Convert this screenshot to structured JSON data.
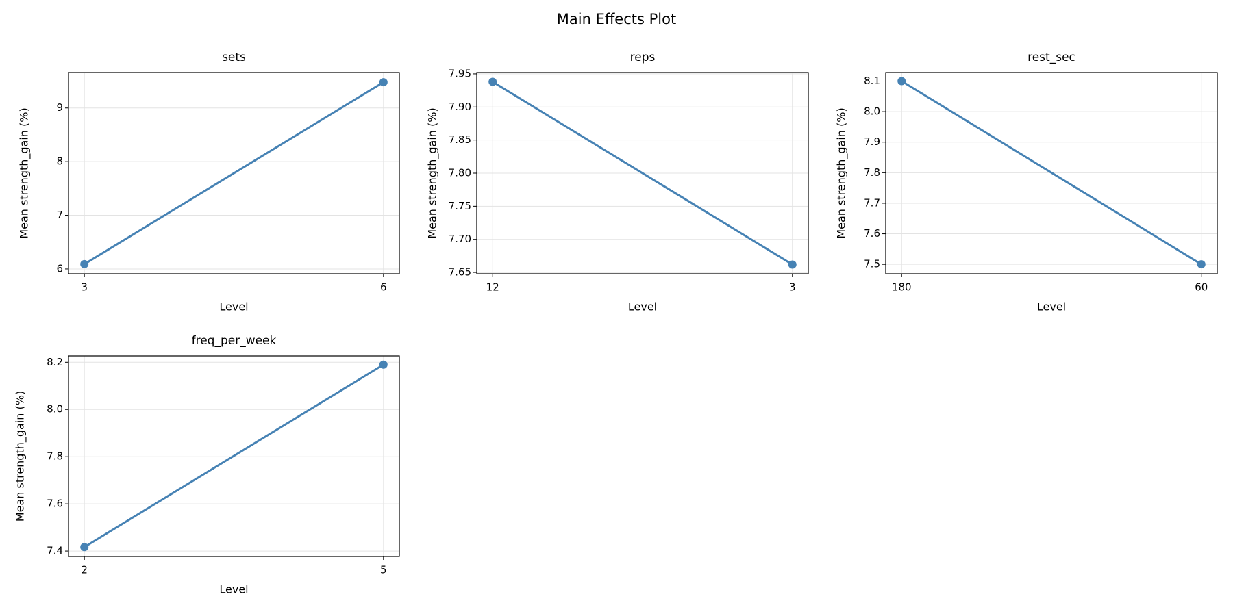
{
  "title": "Main Effects Plot",
  "chart_data": [
    {
      "type": "line",
      "title": "sets",
      "xlabel": "Level",
      "ylabel": "Mean strength_gain (%)",
      "categories": [
        "3",
        "6"
      ],
      "values": [
        6.09,
        9.48
      ],
      "color": "#4682b4",
      "ylim": [
        5.91,
        9.66
      ],
      "yticks": [
        6,
        7,
        8,
        9
      ],
      "grid": true
    },
    {
      "type": "line",
      "title": "reps",
      "xlabel": "Level",
      "ylabel": "Mean strength_gain (%)",
      "categories": [
        "12",
        "3"
      ],
      "values": [
        7.938,
        7.662
      ],
      "color": "#4682b4",
      "ylim": [
        7.648,
        7.952
      ],
      "yticks": [
        {
          "value": 7.65,
          "label": "7.65"
        },
        {
          "value": 7.7,
          "label": "7.70"
        },
        {
          "value": 7.75,
          "label": "7.75"
        },
        {
          "value": 7.8,
          "label": "7.80"
        },
        {
          "value": 7.85,
          "label": "7.85"
        },
        {
          "value": 7.9,
          "label": "7.90"
        },
        {
          "value": 7.95,
          "label": "7.95"
        }
      ],
      "grid": true
    },
    {
      "type": "line",
      "title": "rest_sec",
      "xlabel": "Level",
      "ylabel": "Mean strength_gain (%)",
      "categories": [
        "180",
        "60"
      ],
      "values": [
        8.1,
        7.5
      ],
      "color": "#4682b4",
      "ylim": [
        7.469,
        8.128
      ],
      "yticks": [
        7.5,
        7.6,
        7.7,
        7.8,
        7.9,
        {
          "value": 8,
          "label": "8.0"
        },
        8.1
      ],
      "grid": true
    },
    {
      "type": "line",
      "title": "freq_per_week",
      "xlabel": "Level",
      "ylabel": "Mean strength_gain (%)",
      "categories": [
        "2",
        "5"
      ],
      "values": [
        7.417,
        8.19
      ],
      "color": "#4682b4",
      "ylim": [
        7.377,
        8.227
      ],
      "yticks": [
        7.4,
        7.6,
        7.8,
        {
          "value": 8,
          "label": "8.0"
        },
        8.2
      ],
      "grid": true
    }
  ]
}
